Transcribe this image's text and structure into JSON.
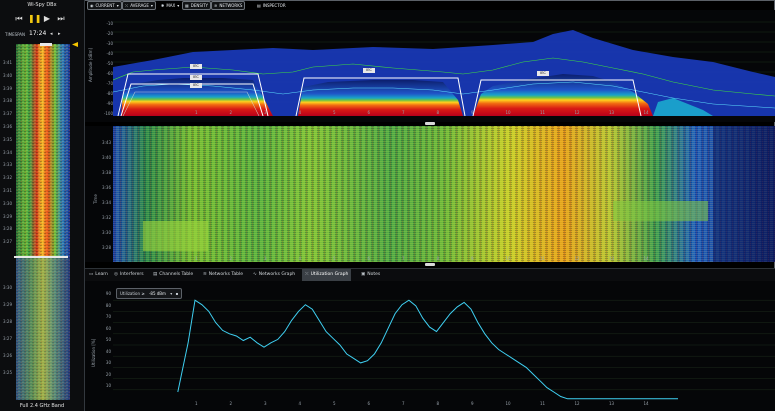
{
  "app": {
    "title": "Wi-Spy DBx"
  },
  "playback": {
    "rewind_icon": "skip-back-icon",
    "pause_icon": "pause-icon",
    "play_icon": "play-icon",
    "forward_icon": "skip-forward-icon"
  },
  "timespan": {
    "label": "TIMESPAN",
    "value": "17:24",
    "prev": "◂",
    "next": "▸"
  },
  "left_panel": {
    "upper_ticks": [
      "3:41",
      "3:40",
      "3:39",
      "3:38",
      "3:37",
      "3:36",
      "3:35",
      "3:34",
      "3:33",
      "3:32",
      "3:31",
      "3:30",
      "3:29",
      "3:28",
      "3:27"
    ],
    "lower_ticks": [
      "3:30",
      "3:29",
      "3:28",
      "3:27",
      "3:26",
      "3:25"
    ],
    "band_label": "Full 2.4 GHz Band"
  },
  "toolbar": {
    "current": "CURRENT",
    "average": "AVERAGE",
    "max": "MAX",
    "density": "DENSITY",
    "networks": "NETWORKS",
    "inspector": "INSPECTOR"
  },
  "spectrum": {
    "y_axis_label": "Amplitude [dBm]",
    "y_ticks": [
      "-10",
      "-20",
      "-30",
      "-40",
      "-50",
      "-60",
      "-70",
      "-80",
      "-90",
      "-100"
    ],
    "x_ticks": [
      "1",
      "2",
      "3",
      "4",
      "5",
      "6",
      "7",
      "8",
      "9",
      "10",
      "11",
      "12",
      "13",
      "14"
    ],
    "network_labels": [
      "IEC",
      "IEC",
      "IEC",
      "IEC",
      "IEC"
    ]
  },
  "waterfall": {
    "y_axis_label": "Time",
    "y_ticks": [
      "3:43",
      "3:40",
      "3:38",
      "3:36",
      "3:34",
      "3:32",
      "3:30",
      "3:28"
    ],
    "x_ticks": [
      "1",
      "2",
      "3",
      "4",
      "5",
      "6",
      "7",
      "8",
      "9",
      "10",
      "11",
      "12",
      "13",
      "14"
    ]
  },
  "tabs": [
    {
      "label": "Learn",
      "icon": "book-icon"
    },
    {
      "label": "Interferers",
      "icon": "interferer-icon"
    },
    {
      "label": "Channels Table",
      "icon": "table-icon"
    },
    {
      "label": "Networks Table",
      "icon": "wifi-icon"
    },
    {
      "label": "Networks Graph",
      "icon": "graph-icon"
    },
    {
      "label": "Utilization Graph",
      "icon": "utilization-icon"
    },
    {
      "label": "Notes",
      "icon": "notes-icon"
    }
  ],
  "utilization": {
    "threshold_label": "Utilization ≥",
    "threshold_value": "-85 dBm",
    "y_axis_label": "Utilization [%]",
    "y_ticks": [
      "90",
      "80",
      "70",
      "60",
      "50",
      "40",
      "30",
      "20",
      "10"
    ],
    "x_ticks": [
      "1",
      "2",
      "3",
      "4",
      "5",
      "6",
      "7",
      "8",
      "9",
      "10",
      "11",
      "12",
      "13",
      "14"
    ]
  },
  "chart_data": {
    "type": "line",
    "xlabel": "",
    "ylabel": "Utilization [%]",
    "ylim": [
      0,
      100
    ],
    "x": [
      0.5,
      0.8,
      1.0,
      1.2,
      1.4,
      1.6,
      1.8,
      2.0,
      2.2,
      2.4,
      2.6,
      2.8,
      3.0,
      3.2,
      3.4,
      3.6,
      3.8,
      4.0,
      4.2,
      4.4,
      4.6,
      4.8,
      5.0,
      5.2,
      5.4,
      5.6,
      5.8,
      6.0,
      6.2,
      6.4,
      6.6,
      6.8,
      7.0,
      7.2,
      7.4,
      7.6,
      7.8,
      8.0,
      8.2,
      8.4,
      8.6,
      8.8,
      9.0,
      9.2,
      9.4,
      9.6,
      9.8,
      10.0,
      10.2,
      10.4,
      10.6,
      10.8,
      11.0,
      11.2,
      11.4,
      11.6,
      11.8,
      12.0,
      12.2,
      12.4,
      12.6,
      12.8,
      13.0,
      13.2,
      13.4,
      13.6,
      13.8,
      14.0,
      14.2,
      14.5,
      14.8,
      15.0
    ],
    "series": [
      {
        "values": [
          8,
          52,
          90,
          86,
          80,
          70,
          63,
          60,
          58,
          54,
          57,
          52,
          48,
          52,
          55,
          62,
          72,
          80,
          86,
          82,
          72,
          62,
          56,
          50,
          42,
          38,
          34,
          36,
          42,
          52,
          65,
          78,
          86,
          90,
          85,
          74,
          66,
          62,
          70,
          78,
          84,
          88,
          82,
          70,
          60,
          52,
          46,
          42,
          38,
          34,
          30,
          24,
          18,
          12,
          8,
          4,
          2,
          2,
          2,
          2,
          2,
          2,
          2,
          2,
          2,
          2,
          2,
          2,
          2,
          2,
          2,
          2
        ]
      }
    ]
  }
}
